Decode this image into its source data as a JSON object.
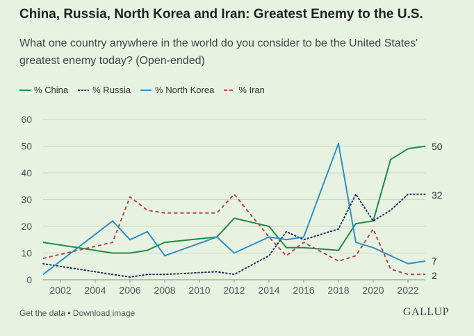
{
  "title": "China, Russia, North Korea and Iran: Greatest Enemy to the U.S.",
  "subtitle": "What one country anywhere in the world do you consider to be the United States' greatest enemy today? (Open-ended)",
  "footer": {
    "get_data": "Get the data",
    "separator": " • ",
    "download": "Download image"
  },
  "logo": "GALLUP",
  "chart_data": {
    "type": "line",
    "title": "China, Russia, North Korea and Iran: Greatest Enemy to the U.S.",
    "xlim": [
      2001,
      2023
    ],
    "ylim": [
      0,
      60
    ],
    "y_ticks": [
      0,
      10,
      20,
      30,
      40,
      50,
      60
    ],
    "x_ticks": [
      2002,
      2004,
      2006,
      2008,
      2010,
      2012,
      2014,
      2016,
      2018,
      2020,
      2022
    ],
    "grid": true,
    "legend_position": "top-left",
    "series": [
      {
        "name": "% China",
        "color": "#1e8c45",
        "style": "solid",
        "end_label": "50",
        "x": [
          2001,
          2005,
          2006,
          2007,
          2008,
          2011,
          2012,
          2014,
          2015,
          2016,
          2018,
          2019,
          2020,
          2021,
          2022,
          2023
        ],
        "values": [
          14,
          10,
          10,
          11,
          14,
          16,
          23,
          20,
          12,
          12,
          11,
          21,
          22,
          45,
          49,
          50
        ]
      },
      {
        "name": "% Russia",
        "color": "#1d2f5e",
        "style": "dotted",
        "end_label": "32",
        "x": [
          2001,
          2005,
          2006,
          2007,
          2008,
          2011,
          2012,
          2014,
          2015,
          2016,
          2018,
          2019,
          2020,
          2021,
          2022,
          2023
        ],
        "values": [
          6,
          2,
          1,
          2,
          2,
          3,
          2,
          9,
          18,
          15,
          19,
          32,
          22,
          26,
          32,
          32
        ]
      },
      {
        "name": "% North Korea",
        "color": "#2f8fc4",
        "style": "solid",
        "end_label": "7",
        "x": [
          2001,
          2005,
          2006,
          2007,
          2008,
          2011,
          2012,
          2014,
          2015,
          2016,
          2018,
          2019,
          2020,
          2021,
          2022,
          2023
        ],
        "values": [
          2,
          22,
          15,
          18,
          9,
          16,
          10,
          16,
          15,
          16,
          51,
          14,
          12,
          9,
          6,
          7
        ]
      },
      {
        "name": "% Iran",
        "color": "#b04a4a",
        "style": "dashed",
        "end_label": "2",
        "x": [
          2001,
          2005,
          2006,
          2007,
          2008,
          2011,
          2012,
          2014,
          2015,
          2016,
          2018,
          2019,
          2020,
          2021,
          2022,
          2023
        ],
        "values": [
          8,
          14,
          31,
          26,
          25,
          25,
          32,
          16,
          9,
          14,
          7,
          9,
          19,
          4,
          2,
          2
        ]
      }
    ]
  }
}
